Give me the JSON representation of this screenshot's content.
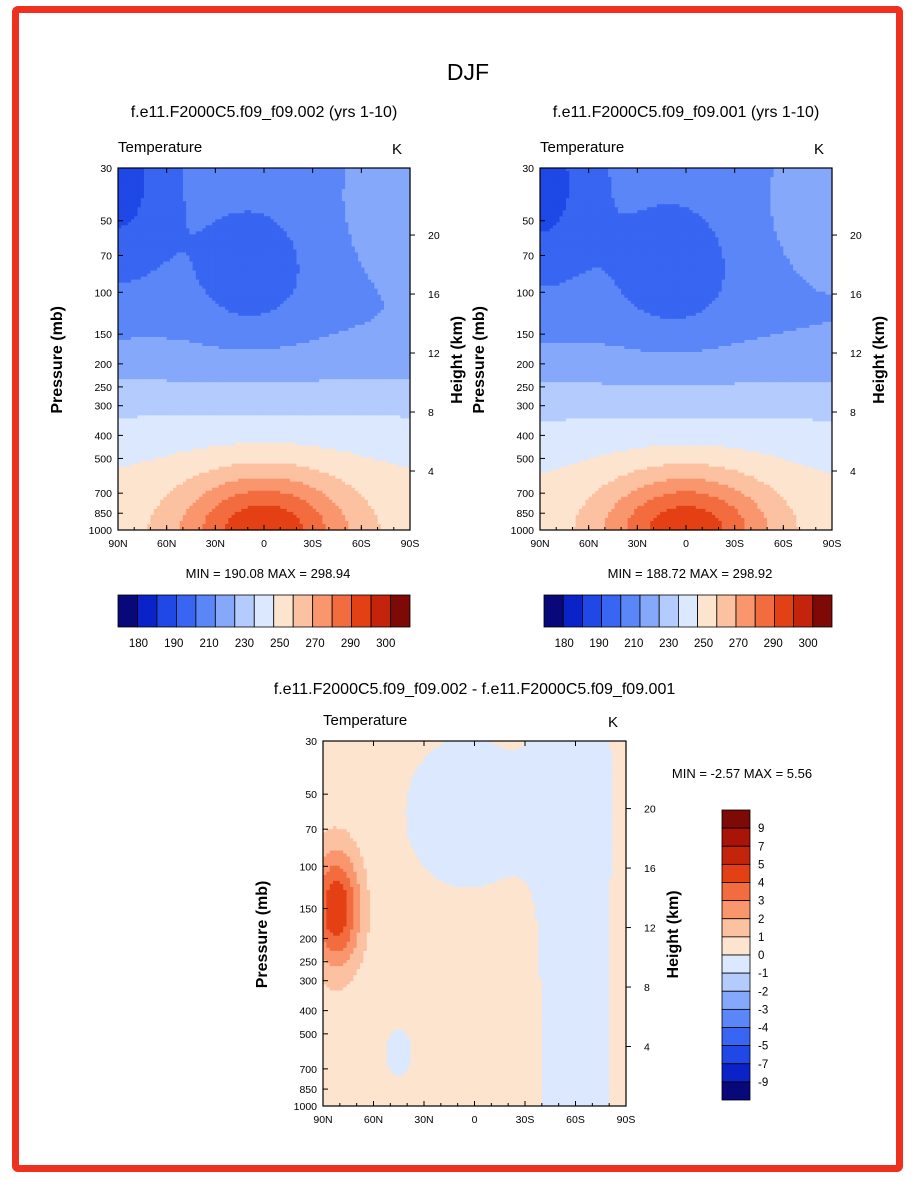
{
  "figure": {
    "title": "DJF"
  },
  "chart_data": [
    {
      "type": "heatmap",
      "title": "f.e11.F2000C5.f09_f09.002 (yrs 1-10)",
      "variable_label": "Temperature",
      "units_label": "K",
      "ylabel": "Pressure (mb)",
      "ylabel_right": "Height (km)",
      "x_ticks": [
        "90N",
        "60N",
        "30N",
        "0",
        "30S",
        "60S",
        "90S"
      ],
      "y_ticks": [
        "30",
        "50",
        "70",
        "100",
        "150",
        "200",
        "250",
        "300",
        "400",
        "500",
        "700",
        "850",
        "1000"
      ],
      "y_right_ticks": [
        "20",
        "16",
        "12",
        "8",
        "4"
      ],
      "x_range": [
        90,
        -90
      ],
      "y_range_mb": [
        1000,
        30
      ],
      "y_scale": "log",
      "grid": false,
      "stats": "MIN = 190.08  MAX = 298.94",
      "min": 190.08,
      "max": 298.94,
      "colorbar": {
        "orientation": "horizontal",
        "levels": [
          180,
          190,
          200,
          210,
          220,
          230,
          240,
          250,
          260,
          270,
          280,
          290,
          300
        ],
        "labels": [
          "180",
          "190",
          "210",
          "230",
          "250",
          "270",
          "290",
          "300"
        ],
        "colors": [
          "#08087a",
          "#0a23c8",
          "#1f48e6",
          "#3865f2",
          "#5a86f8",
          "#86a8fb",
          "#b4cbfd",
          "#dbe8fe",
          "#fde4cf",
          "#fbc1a0",
          "#f9966e",
          "#f26c3f",
          "#e44015",
          "#c4230c",
          "#7d0a07"
        ]
      }
    },
    {
      "type": "heatmap",
      "title": "f.e11.F2000C5.f09_f09.001 (yrs 1-10)",
      "variable_label": "Temperature",
      "units_label": "K",
      "ylabel": "Pressure (mb)",
      "ylabel_right": "Height (km)",
      "x_ticks": [
        "90N",
        "60N",
        "30N",
        "0",
        "30S",
        "60S",
        "90S"
      ],
      "y_ticks": [
        "30",
        "50",
        "70",
        "100",
        "150",
        "200",
        "250",
        "300",
        "400",
        "500",
        "700",
        "850",
        "1000"
      ],
      "y_right_ticks": [
        "20",
        "16",
        "12",
        "8",
        "4"
      ],
      "x_range": [
        90,
        -90
      ],
      "y_range_mb": [
        1000,
        30
      ],
      "y_scale": "log",
      "grid": false,
      "stats": "MIN = 188.72  MAX = 298.92",
      "min": 188.72,
      "max": 298.92,
      "colorbar": {
        "orientation": "horizontal",
        "levels": [
          180,
          190,
          200,
          210,
          220,
          230,
          240,
          250,
          260,
          270,
          280,
          290,
          300
        ],
        "labels": [
          "180",
          "190",
          "210",
          "230",
          "250",
          "270",
          "290",
          "300"
        ],
        "colors": [
          "#08087a",
          "#0a23c8",
          "#1f48e6",
          "#3865f2",
          "#5a86f8",
          "#86a8fb",
          "#b4cbfd",
          "#dbe8fe",
          "#fde4cf",
          "#fbc1a0",
          "#f9966e",
          "#f26c3f",
          "#e44015",
          "#c4230c",
          "#7d0a07"
        ]
      }
    },
    {
      "type": "heatmap",
      "title": "f.e11.F2000C5.f09_f09.002 - f.e11.F2000C5.f09_f09.001",
      "variable_label": "Temperature",
      "units_label": "K",
      "ylabel": "Pressure (mb)",
      "ylabel_right": "Height (km)",
      "x_ticks": [
        "90N",
        "60N",
        "30N",
        "0",
        "30S",
        "60S",
        "90S"
      ],
      "y_ticks": [
        "30",
        "50",
        "70",
        "100",
        "150",
        "200",
        "250",
        "300",
        "400",
        "500",
        "700",
        "850",
        "1000"
      ],
      "y_right_ticks": [
        "20",
        "16",
        "12",
        "8",
        "4"
      ],
      "x_range": [
        90,
        -90
      ],
      "y_range_mb": [
        1000,
        30
      ],
      "y_scale": "log",
      "grid": false,
      "stats": "MIN = -2.57  MAX =   5.56",
      "min": -2.57,
      "max": 5.56,
      "colorbar": {
        "orientation": "vertical",
        "labels": [
          "9",
          "7",
          "5",
          "4",
          "3",
          "2",
          "1",
          "0",
          "-1",
          "-2",
          "-3",
          "-4",
          "-5",
          "-7",
          "-9"
        ],
        "colors": [
          "#7d0a07",
          "#a81508",
          "#c4230c",
          "#e44015",
          "#f26c3f",
          "#f9966e",
          "#fbc1a0",
          "#fde4cf",
          "#dbe8fe",
          "#b4cbfd",
          "#86a8fb",
          "#5a86f8",
          "#3865f2",
          "#1f48e6",
          "#0a23c8",
          "#08087a"
        ]
      }
    }
  ]
}
